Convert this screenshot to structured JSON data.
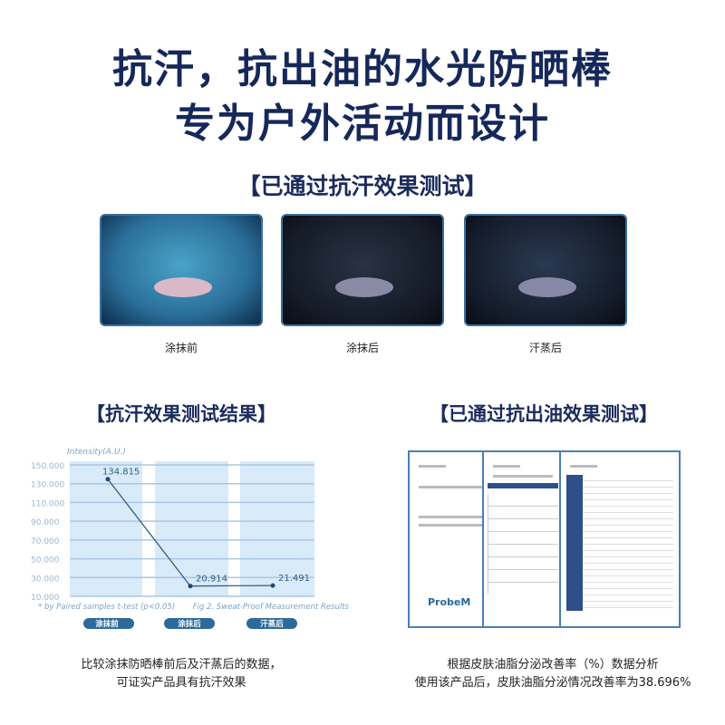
{
  "headline": {
    "line1": "抗汗，抗出油的水光防晒棒",
    "line2": "专为户外活动而设计"
  },
  "sweat_test": {
    "title": "【已通过抗汗效果测试】",
    "photos": [
      {
        "caption": "涂抹前"
      },
      {
        "caption": "涂抹后"
      },
      {
        "caption": "汗蒸后"
      }
    ]
  },
  "sweat_result": {
    "title": "【抗汗效果测试结果】",
    "note_line1": "比较涂抹防晒棒前后及汗蒸后的数据，",
    "note_line2": "可证实产品具有抗汗效果"
  },
  "oil_test": {
    "title": "【已通过抗出油效果测试】",
    "note_line1": "根据皮肤油脂分泌改善率（%）数据分析",
    "note_line2": "使用该产品后，皮肤油脂分泌情况改善率为38.696%",
    "doc_logo": "ProbeM"
  },
  "chart_data": {
    "type": "line",
    "ylabel": "Intensity(A.U.)",
    "categories": [
      "涂抹前",
      "涂抹后",
      "汗蒸后"
    ],
    "values": [
      134.815,
      20.914,
      21.491
    ],
    "data_labels": [
      "134.815",
      "20.914",
      "21.491"
    ],
    "yticks": [
      "150.000",
      "130.000",
      "110.000",
      "90.000",
      "70.000",
      "50.000",
      "30.000",
      "10.000"
    ],
    "ylim": [
      10,
      150
    ],
    "grid": true,
    "footnote": "* by Paired samples t-test (p<0.05)",
    "caption": "Fig 2. Sweat-Proof Measurement Results",
    "colors": {
      "line": "#2f5f86",
      "band": "#d9eaf8",
      "pill": "#2d6a9c"
    }
  }
}
